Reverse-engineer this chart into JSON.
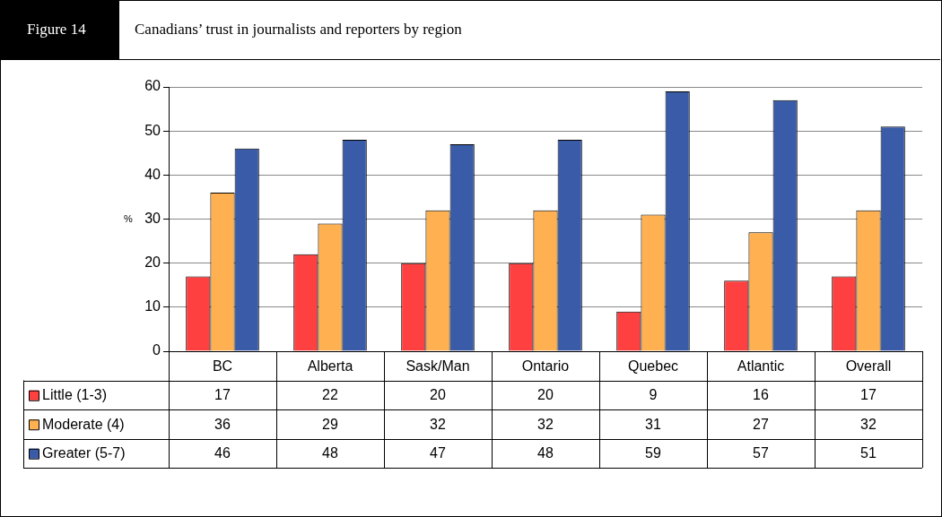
{
  "chart_data": {
    "type": "bar",
    "title": "Canadians’ trust in journalists and reporters by region",
    "annotations": [
      "Figure 14"
    ],
    "ylabel": "%",
    "categories": [
      "BC",
      "Alberta",
      "Sask/Man",
      "Ontario",
      "Quebec",
      "Atlantic",
      "Overall"
    ],
    "series": [
      {
        "name": "Little (1-3)",
        "color": "#ff4040",
        "values": [
          17,
          22,
          20,
          20,
          9,
          16,
          17
        ]
      },
      {
        "name": "Moderate (4)",
        "color": "#ffb050",
        "values": [
          36,
          29,
          32,
          32,
          31,
          27,
          32
        ]
      },
      {
        "name": "Greater (5-7)",
        "color": "#3a5ba8",
        "values": [
          46,
          48,
          47,
          48,
          59,
          57,
          51
        ]
      }
    ],
    "ylim": [
      0,
      60
    ],
    "yticks": [
      0,
      10,
      20,
      30,
      40,
      50,
      60
    ],
    "grid": "y",
    "legend": "bottom",
    "data_labels": true
  }
}
